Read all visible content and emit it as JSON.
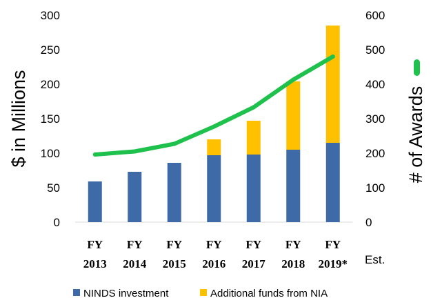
{
  "chart_data": {
    "type": "bar",
    "title": "",
    "xlabel": "",
    "ylabel": "$ in Millions",
    "y2label": "# of Awards",
    "ylim": [
      0,
      300
    ],
    "y2lim": [
      0,
      600
    ],
    "yticks": [
      "0",
      "50",
      "100",
      "150",
      "200",
      "250",
      "300"
    ],
    "y2ticks": [
      "0",
      "100",
      "200",
      "300",
      "400",
      "500",
      "600"
    ],
    "categories": [
      {
        "top": "FY",
        "bottom": "2013"
      },
      {
        "top": "FY",
        "bottom": "2014"
      },
      {
        "top": "FY",
        "bottom": "2015"
      },
      {
        "top": "FY",
        "bottom": "2016"
      },
      {
        "top": "FY",
        "bottom": "2017"
      },
      {
        "top": "FY",
        "bottom": "2018"
      },
      {
        "top": "FY",
        "bottom": "2019*"
      }
    ],
    "estimate_note": "Est.",
    "series": [
      {
        "name": "NINDS investment",
        "kind": "stacked-bar",
        "color": "#3f6aa8",
        "values": [
          59,
          73,
          86,
          97,
          98,
          105,
          115
        ]
      },
      {
        "name": "Additional funds from NIA",
        "kind": "stacked-bar",
        "color": "#ffc000",
        "values": [
          0,
          0,
          0,
          23,
          49,
          99,
          170
        ]
      },
      {
        "name": "# of Awards",
        "kind": "line",
        "axis": "right",
        "color": "#1fc14d",
        "values": [
          196,
          205,
          227,
          277,
          333,
          413,
          480
        ]
      }
    ],
    "legend": {
      "position": "bottom"
    }
  }
}
